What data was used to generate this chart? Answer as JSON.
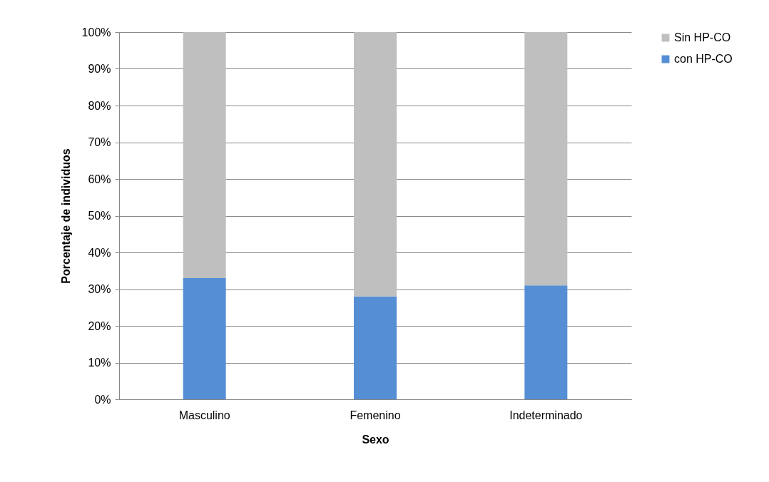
{
  "chart_data": {
    "type": "bar",
    "stacked": true,
    "xlabel": "Sexo",
    "ylabel": "Porcentaje de individuos",
    "categories": [
      "Masculino",
      "Femenino",
      "Indeterminado"
    ],
    "series": [
      {
        "name": "con HP-CO",
        "color": "#558ed5",
        "values": [
          33,
          28,
          31
        ]
      },
      {
        "name": "Sin HP-CO",
        "color": "#bfbfbf",
        "values": [
          67,
          72,
          69
        ]
      }
    ],
    "ylim": [
      0,
      100
    ],
    "yticks": [
      {
        "value": 0,
        "label": "0%"
      },
      {
        "value": 10,
        "label": "10%"
      },
      {
        "value": 20,
        "label": "20%"
      },
      {
        "value": 30,
        "label": "30%"
      },
      {
        "value": 40,
        "label": "40%"
      },
      {
        "value": 50,
        "label": "50%"
      },
      {
        "value": 60,
        "label": "60%"
      },
      {
        "value": 70,
        "label": "70%"
      },
      {
        "value": 80,
        "label": "80%"
      },
      {
        "value": 90,
        "label": "90%"
      },
      {
        "value": 100,
        "label": "100%"
      }
    ],
    "grid": "y",
    "legend": "right"
  }
}
